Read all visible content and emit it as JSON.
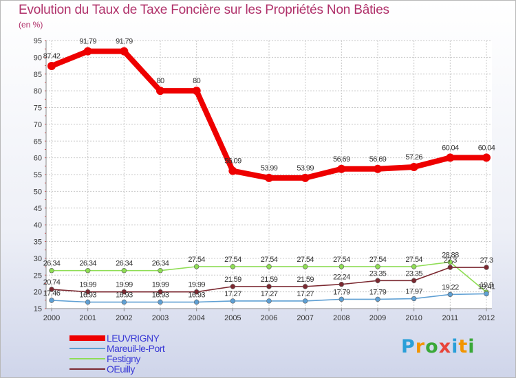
{
  "chart_data": {
    "type": "line",
    "title": "Evolution du Taux de Taxe Foncière sur les Propriétés Non Bâties",
    "ylabel": "(en %)",
    "xlabel": "",
    "ylim": [
      15,
      95
    ],
    "yticks": [
      "15",
      "20",
      "25",
      "30",
      "35",
      "40",
      "45",
      "50",
      "55",
      "60",
      "65",
      "70",
      "75",
      "80",
      "85",
      "90",
      "95"
    ],
    "categories": [
      "2000",
      "2001",
      "2002",
      "2003",
      "2004",
      "2005",
      "2006",
      "2007",
      "2008",
      "2009",
      "2010",
      "2011",
      "2012"
    ],
    "series": [
      {
        "name": "LEUVRIGNY",
        "color": "#ee0000",
        "values": [
          87.42,
          91.79,
          91.79,
          80,
          80,
          56.09,
          53.99,
          53.99,
          56.69,
          56.69,
          57.26,
          60.04,
          60.04
        ],
        "labels": [
          "87.42",
          "91.79",
          "91.79",
          "80",
          "80",
          "56.09",
          "53.99",
          "53.99",
          "56.69",
          "56.69",
          "57.26",
          "60.04",
          "60.04"
        ]
      },
      {
        "name": "Mareuil-le-Port",
        "color": "#5fa0d4",
        "values": [
          17.46,
          16.93,
          16.93,
          16.93,
          16.93,
          17.27,
          17.27,
          17.27,
          17.79,
          17.79,
          17.97,
          19.22,
          19.41
        ],
        "labels": [
          "17.46",
          "16.93",
          "16.93",
          "16.93",
          "16.93",
          "17.27",
          "17.27",
          "17.27",
          "17.79",
          "17.79",
          "17.97",
          "19.22",
          "19.41"
        ]
      },
      {
        "name": "Festigny",
        "color": "#8fdd55",
        "values": [
          26.34,
          26.34,
          26.34,
          26.34,
          27.54,
          27.54,
          27.54,
          27.54,
          27.54,
          27.54,
          27.54,
          28.88,
          19.9
        ],
        "labels": [
          "26.34",
          "26.34",
          "26.34",
          "26.34",
          "27.54",
          "27.54",
          "27.54",
          "27.54",
          "27.54",
          "27.54",
          "27.54",
          "28.88",
          "19.9"
        ]
      },
      {
        "name": "OEuilly",
        "color": "#7b2830",
        "values": [
          20.74,
          19.99,
          19.99,
          19.99,
          19.99,
          21.59,
          21.59,
          21.59,
          22.24,
          23.35,
          23.35,
          27.3,
          27.3
        ],
        "labels": [
          "20.74",
          "19.99",
          "19.99",
          "19.99",
          "19.99",
          "21.59",
          "21.59",
          "21.59",
          "22.24",
          "23.35",
          "23.35",
          "27.3",
          "27.3"
        ]
      }
    ]
  },
  "logo": {
    "letters": [
      "P",
      "r",
      "o",
      "x",
      "i",
      "t",
      "i"
    ],
    "colors": [
      "#2a9fd8",
      "#f29500",
      "#3aa838",
      "#e8443a",
      "#2a9fd8",
      "#f29500",
      "#3aa838"
    ]
  }
}
